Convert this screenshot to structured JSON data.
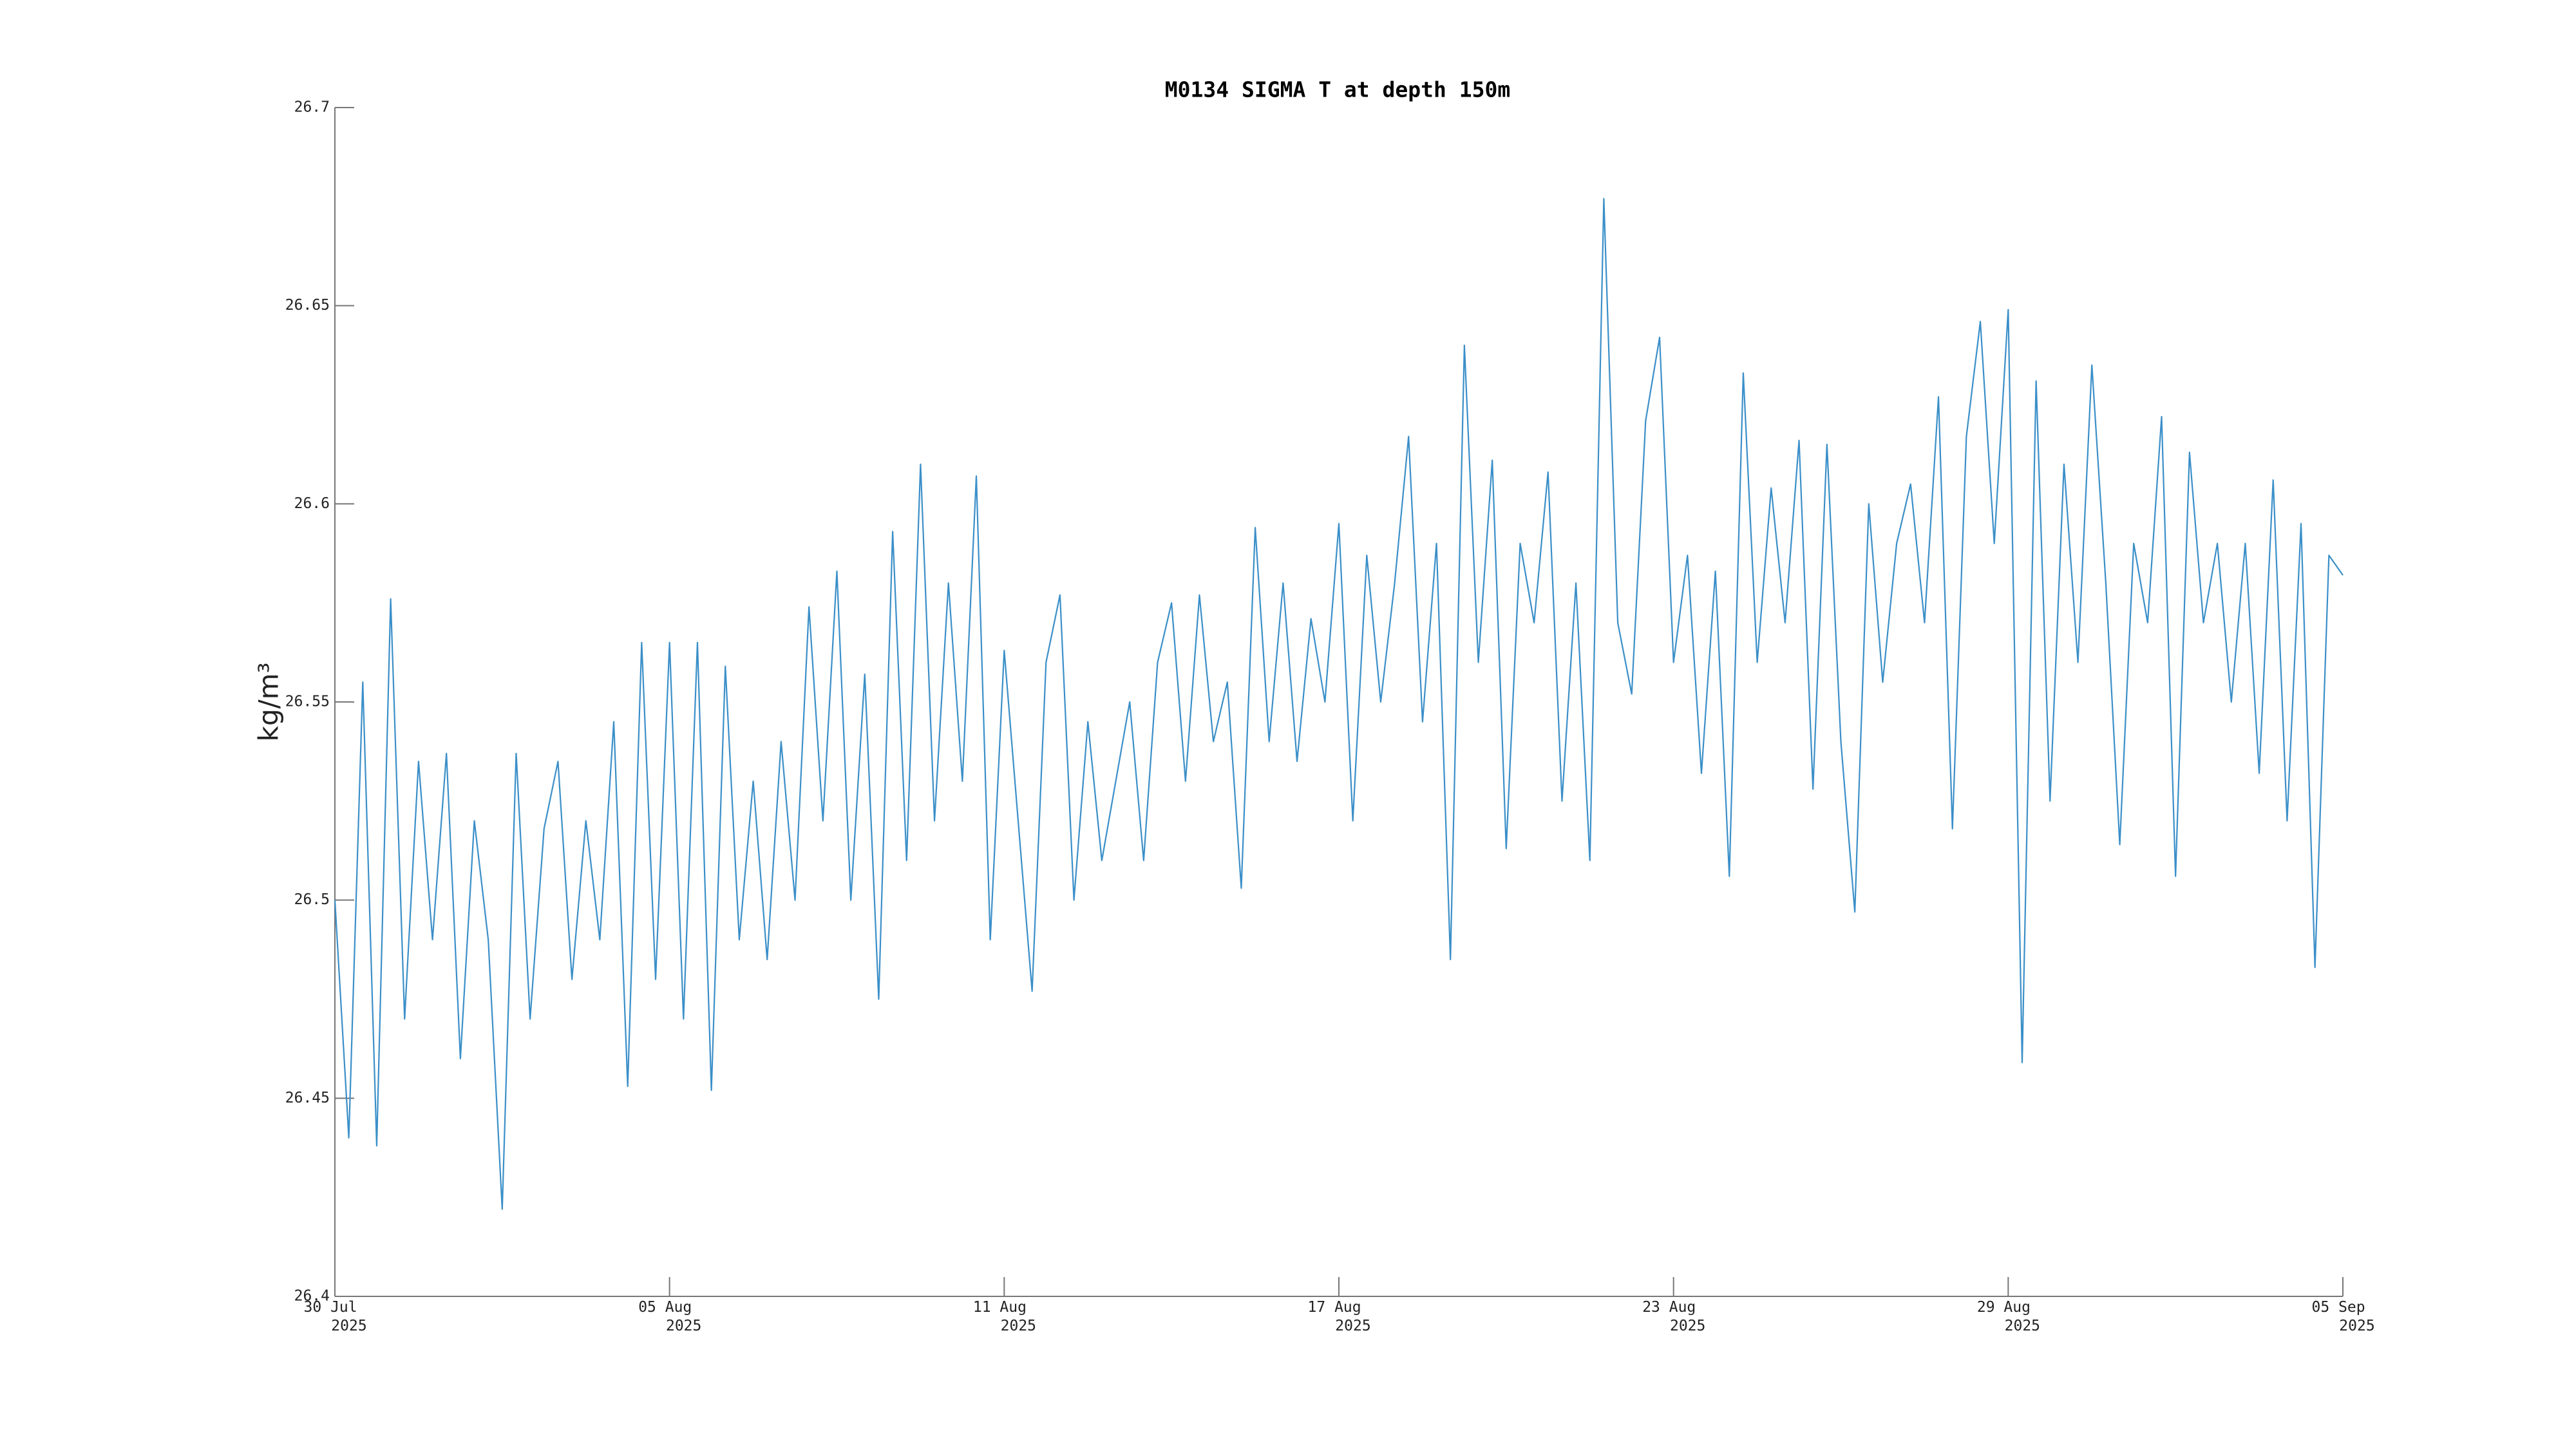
{
  "chart_data": {
    "type": "line",
    "title": "M0134 SIGMA T at depth 150m",
    "y_label": "kg/m³",
    "color": "#3b8fc8",
    "xlim": [
      0,
      36
    ],
    "xticks": [
      {
        "value": 0,
        "label": "30 Jul 2025"
      },
      {
        "value": 6,
        "label": "05 Aug 2025"
      },
      {
        "value": 12,
        "label": "11 Aug 2025"
      },
      {
        "value": 18,
        "label": "17 Aug 2025"
      },
      {
        "value": 24,
        "label": "23 Aug 2025"
      },
      {
        "value": 30,
        "label": "29 Aug 2025"
      },
      {
        "value": 36,
        "label": "05 Sep 2025"
      }
    ],
    "ylim": [
      26.4,
      26.7
    ],
    "yticks": [
      26.4,
      26.45,
      26.5,
      26.55,
      26.6,
      26.65,
      26.7
    ],
    "x": [
      0,
      0.25,
      0.5,
      0.75,
      1,
      1.25,
      1.5,
      1.75,
      2,
      2.25,
      2.5,
      2.75,
      3,
      3.25,
      3.5,
      3.75,
      4,
      4.25,
      4.5,
      4.75,
      5,
      5.25,
      5.5,
      5.75,
      6,
      6.25,
      6.5,
      6.75,
      7,
      7.25,
      7.5,
      7.75,
      8,
      8.25,
      8.5,
      8.75,
      9,
      9.25,
      9.5,
      9.75,
      10,
      10.25,
      10.5,
      10.75,
      11,
      11.25,
      11.5,
      11.75,
      12,
      12.25,
      12.5,
      12.75,
      13,
      13.25,
      13.5,
      13.75,
      14,
      14.25,
      14.5,
      14.75,
      15,
      15.25,
      15.5,
      15.75,
      16,
      16.25,
      16.5,
      16.75,
      17,
      17.25,
      17.5,
      17.75,
      18,
      18.25,
      18.5,
      18.75,
      19,
      19.25,
      19.5,
      19.75,
      20,
      20.25,
      20.5,
      20.75,
      21,
      21.25,
      21.5,
      21.75,
      22,
      22.25,
      22.5,
      22.75,
      23,
      23.25,
      23.5,
      23.75,
      24,
      24.25,
      24.5,
      24.75,
      25,
      25.25,
      25.5,
      25.75,
      26,
      26.25,
      26.5,
      26.75,
      27,
      27.25,
      27.5,
      27.75,
      28,
      28.25,
      28.5,
      28.75,
      29,
      29.25,
      29.5,
      29.75,
      30,
      30.25,
      30.5,
      30.75,
      31,
      31.25,
      31.5,
      31.75,
      32,
      32.25,
      32.5,
      32.75,
      33,
      33.25,
      33.5,
      33.75,
      34,
      34.25,
      34.5,
      34.75,
      35,
      35.25,
      35.5,
      35.75,
      36
    ],
    "values": [
      26.5,
      26.44,
      26.555,
      26.438,
      26.576,
      26.47,
      26.535,
      26.49,
      26.537,
      26.46,
      26.52,
      26.49,
      26.422,
      26.537,
      26.47,
      26.518,
      26.535,
      26.48,
      26.52,
      26.49,
      26.545,
      26.453,
      26.565,
      26.48,
      26.565,
      26.47,
      26.565,
      26.452,
      26.559,
      26.49,
      26.53,
      26.485,
      26.54,
      26.5,
      26.574,
      26.52,
      26.583,
      26.5,
      26.557,
      26.475,
      26.593,
      26.51,
      26.61,
      26.52,
      26.58,
      26.53,
      26.607,
      26.49,
      26.563,
      26.52,
      26.477,
      26.56,
      26.577,
      26.5,
      26.545,
      26.51,
      26.53,
      26.55,
      26.51,
      26.56,
      26.575,
      26.53,
      26.577,
      26.54,
      26.555,
      26.503,
      26.594,
      26.54,
      26.58,
      26.535,
      26.571,
      26.55,
      26.595,
      26.52,
      26.587,
      26.55,
      26.58,
      26.617,
      26.545,
      26.59,
      26.485,
      26.64,
      26.56,
      26.611,
      26.513,
      26.59,
      26.57,
      26.608,
      26.525,
      26.58,
      26.51,
      26.677,
      26.57,
      26.552,
      26.621,
      26.642,
      26.56,
      26.587,
      26.532,
      26.583,
      26.506,
      26.633,
      26.56,
      26.604,
      26.57,
      26.616,
      26.528,
      26.615,
      26.54,
      26.497,
      26.6,
      26.555,
      26.59,
      26.605,
      26.57,
      26.627,
      26.518,
      26.617,
      26.646,
      26.59,
      26.649,
      26.459,
      26.631,
      26.525,
      26.61,
      26.56,
      26.635,
      26.58,
      26.514,
      26.59,
      26.57,
      26.622,
      26.506,
      26.613,
      26.57,
      26.59,
      26.55,
      26.59,
      26.532,
      26.606,
      26.52,
      26.595,
      26.483,
      26.587,
      26.582
    ]
  }
}
